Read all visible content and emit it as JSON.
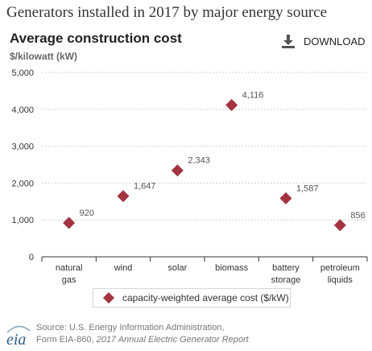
{
  "page": {
    "title": "Generators installed in 2017 by major energy source"
  },
  "chart_header": {
    "title": "Average construction cost",
    "unit": "$/kilowatt (kW)",
    "download_label": "DOWNLOAD",
    "download_icon": "download-icon"
  },
  "chart_data": {
    "type": "scatter",
    "title": "Average construction cost",
    "ylabel": "$/kilowatt (kW)",
    "ylim": [
      0,
      5000
    ],
    "yticks": [
      0,
      1000,
      2000,
      3000,
      4000,
      5000
    ],
    "ytick_labels": [
      "0",
      "1,000",
      "2,000",
      "3,000",
      "4,000",
      "5,000"
    ],
    "grid": true,
    "legend_position": "bottom",
    "categories": [
      [
        "natural",
        "gas"
      ],
      [
        "wind"
      ],
      [
        "solar"
      ],
      [
        "biomass"
      ],
      [
        "battery",
        "storage"
      ],
      [
        "petroleum",
        "liquids"
      ]
    ],
    "series": [
      {
        "name": "capacity-weighted average cost ($/kW)",
        "values": [
          920,
          1647,
          2343,
          4116,
          1587,
          856
        ],
        "labels": [
          "920",
          "1,647",
          "2,343",
          "4,116",
          "1,587",
          "856"
        ],
        "color": "#a33340",
        "marker": "diamond"
      }
    ]
  },
  "legend": {
    "label": "capacity-weighted average cost ($/kW)",
    "color": "#a33340"
  },
  "source": {
    "line1": "Source: U.S. Energy Information Administration,",
    "line2_plain": "Form EIA-860, ",
    "line2_italic": "2017 Annual Electric Generator Report",
    "logo_text": "eia"
  }
}
